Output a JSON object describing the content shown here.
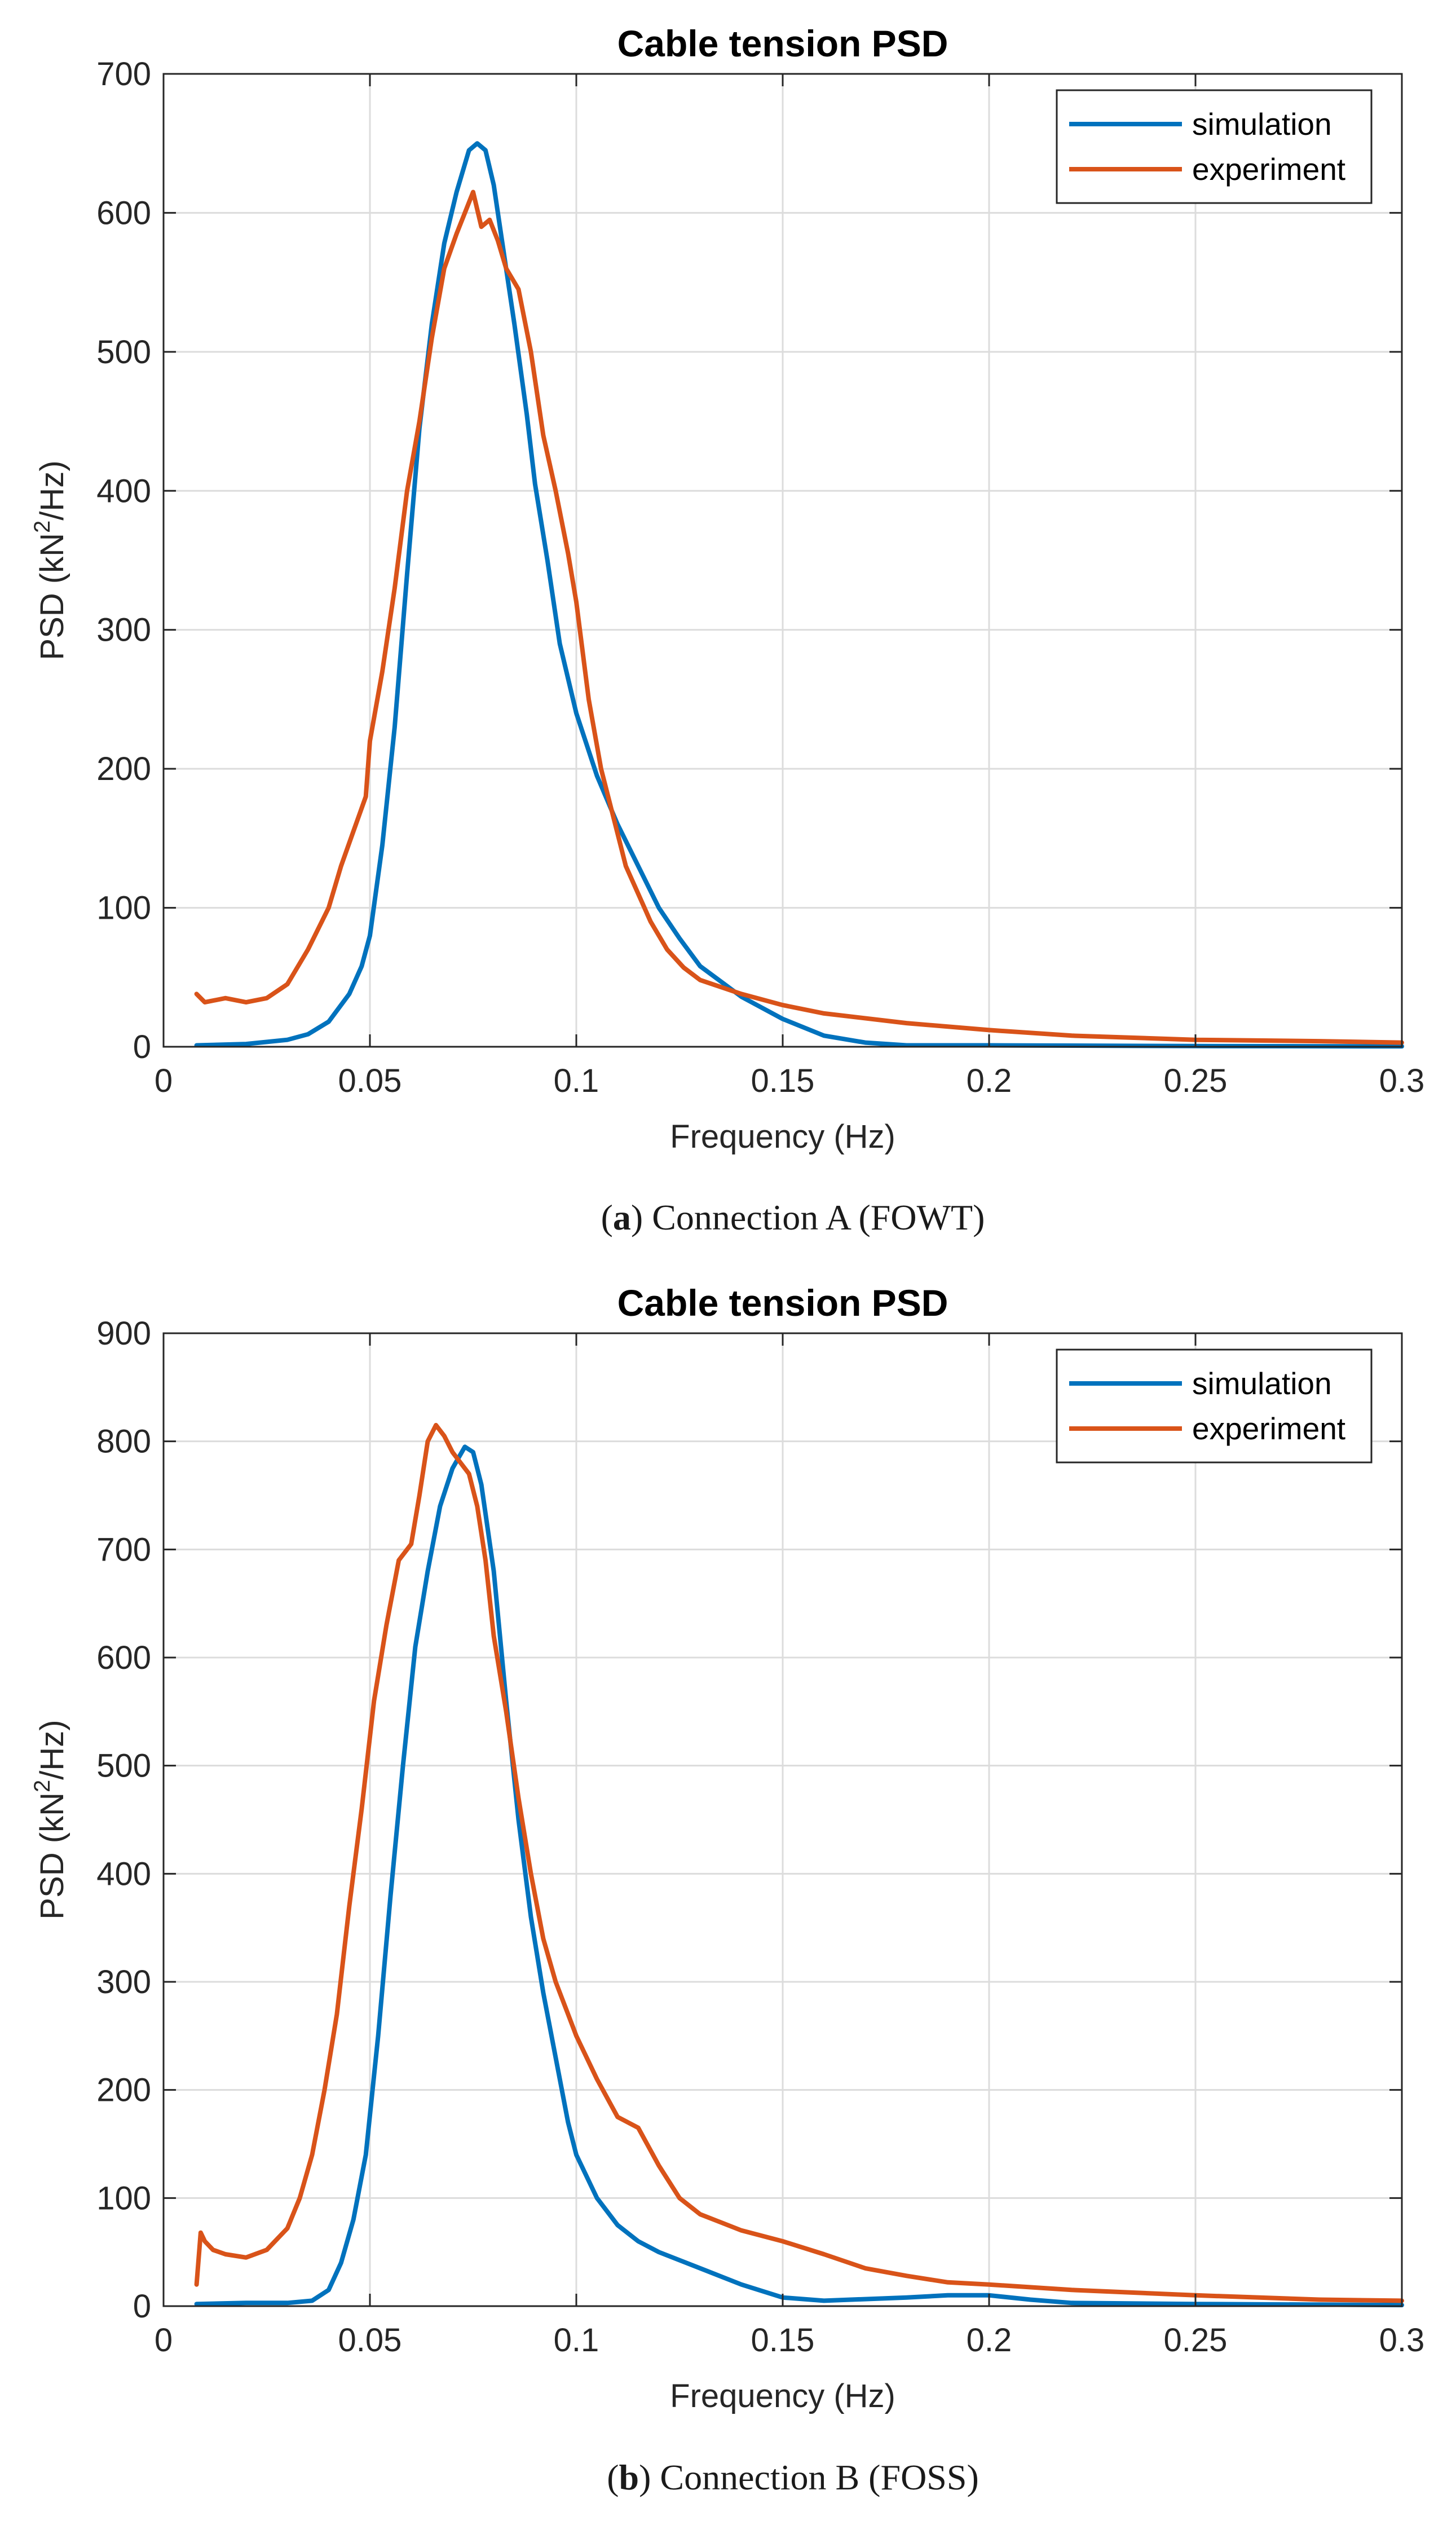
{
  "chart_data": [
    {
      "type": "line",
      "title": "Cable tension PSD",
      "xlabel": "Frequency (Hz)",
      "ylabel": {
        "prefix": "PSD (kN",
        "sup": "2",
        "suffix": "/Hz)"
      },
      "xlim": [
        0,
        0.3
      ],
      "ylim": [
        0,
        700
      ],
      "xticks": [
        0,
        0.05,
        0.1,
        0.15,
        0.2,
        0.25,
        0.3
      ],
      "xtick_labels": [
        "0",
        "0.05",
        "0.1",
        "0.15",
        "0.2",
        "0.25",
        "0.3"
      ],
      "yticks": [
        0,
        100,
        200,
        300,
        400,
        500,
        600,
        700
      ],
      "ytick_labels": [
        "0",
        "100",
        "200",
        "300",
        "400",
        "500",
        "600",
        "700"
      ],
      "grid": true,
      "legend_position": "top-right",
      "caption": {
        "letter": "a",
        "text": "Connection A (FOWT)"
      },
      "series": [
        {
          "name": "simulation",
          "color": "#0072BD",
          "x": [
            0.008,
            0.02,
            0.03,
            0.035,
            0.04,
            0.045,
            0.048,
            0.05,
            0.053,
            0.056,
            0.059,
            0.062,
            0.065,
            0.068,
            0.071,
            0.074,
            0.076,
            0.078,
            0.08,
            0.082,
            0.085,
            0.088,
            0.09,
            0.093,
            0.096,
            0.1,
            0.105,
            0.11,
            0.115,
            0.12,
            0.125,
            0.13,
            0.14,
            0.15,
            0.16,
            0.17,
            0.18,
            0.2,
            0.25,
            0.3
          ],
          "y": [
            1,
            2,
            5,
            9,
            18,
            38,
            58,
            80,
            145,
            230,
            340,
            445,
            520,
            578,
            615,
            645,
            650,
            645,
            620,
            580,
            520,
            455,
            405,
            350,
            290,
            240,
            195,
            160,
            130,
            100,
            78,
            58,
            36,
            20,
            8,
            3,
            1,
            1,
            0.5,
            0.3
          ]
        },
        {
          "name": "experiment",
          "color": "#D95319",
          "x": [
            0.008,
            0.01,
            0.015,
            0.02,
            0.025,
            0.03,
            0.035,
            0.04,
            0.043,
            0.046,
            0.049,
            0.05,
            0.053,
            0.056,
            0.059,
            0.062,
            0.065,
            0.068,
            0.071,
            0.073,
            0.075,
            0.077,
            0.079,
            0.081,
            0.083,
            0.086,
            0.089,
            0.092,
            0.095,
            0.098,
            0.1,
            0.103,
            0.106,
            0.109,
            0.112,
            0.115,
            0.118,
            0.122,
            0.126,
            0.13,
            0.14,
            0.15,
            0.16,
            0.18,
            0.2,
            0.22,
            0.25,
            0.28,
            0.3
          ],
          "y": [
            38,
            32,
            35,
            32,
            35,
            45,
            70,
            100,
            130,
            155,
            180,
            220,
            270,
            330,
            400,
            450,
            510,
            560,
            585,
            600,
            615,
            590,
            595,
            580,
            560,
            545,
            500,
            440,
            400,
            355,
            320,
            250,
            200,
            165,
            130,
            110,
            90,
            70,
            57,
            48,
            38,
            30,
            24,
            17,
            12,
            8,
            5,
            4,
            3
          ]
        }
      ]
    },
    {
      "type": "line",
      "title": "Cable tension PSD",
      "xlabel": "Frequency (Hz)",
      "ylabel": {
        "prefix": "PSD (kN",
        "sup": "2",
        "suffix": "/Hz)"
      },
      "xlim": [
        0,
        0.3
      ],
      "ylim": [
        0,
        900
      ],
      "xticks": [
        0,
        0.05,
        0.1,
        0.15,
        0.2,
        0.25,
        0.3
      ],
      "xtick_labels": [
        "0",
        "0.05",
        "0.1",
        "0.15",
        "0.2",
        "0.25",
        "0.3"
      ],
      "yticks": [
        0,
        100,
        200,
        300,
        400,
        500,
        600,
        700,
        800,
        900
      ],
      "ytick_labels": [
        "0",
        "100",
        "200",
        "300",
        "400",
        "500",
        "600",
        "700",
        "800",
        "900"
      ],
      "grid": true,
      "legend_position": "top-right",
      "caption": {
        "letter": "b",
        "text": "Connection B (FOSS)"
      },
      "series": [
        {
          "name": "simulation",
          "color": "#0072BD",
          "x": [
            0.008,
            0.02,
            0.03,
            0.036,
            0.04,
            0.043,
            0.046,
            0.049,
            0.052,
            0.055,
            0.058,
            0.061,
            0.064,
            0.067,
            0.07,
            0.073,
            0.075,
            0.077,
            0.08,
            0.083,
            0.086,
            0.089,
            0.092,
            0.095,
            0.098,
            0.1,
            0.105,
            0.11,
            0.115,
            0.12,
            0.13,
            0.14,
            0.15,
            0.16,
            0.18,
            0.19,
            0.2,
            0.21,
            0.22,
            0.25,
            0.3
          ],
          "y": [
            2,
            3,
            3,
            5,
            15,
            40,
            80,
            140,
            250,
            380,
            500,
            610,
            680,
            740,
            775,
            795,
            790,
            760,
            680,
            560,
            450,
            360,
            290,
            230,
            170,
            140,
            100,
            75,
            60,
            50,
            35,
            20,
            8,
            5,
            8,
            10,
            10,
            6,
            3,
            2,
            1
          ]
        },
        {
          "name": "experiment",
          "color": "#D95319",
          "x": [
            0.008,
            0.009,
            0.01,
            0.012,
            0.015,
            0.02,
            0.025,
            0.03,
            0.033,
            0.036,
            0.039,
            0.042,
            0.045,
            0.048,
            0.051,
            0.054,
            0.057,
            0.06,
            0.062,
            0.064,
            0.066,
            0.068,
            0.07,
            0.072,
            0.074,
            0.076,
            0.078,
            0.08,
            0.083,
            0.086,
            0.089,
            0.092,
            0.095,
            0.098,
            0.1,
            0.105,
            0.11,
            0.115,
            0.12,
            0.125,
            0.13,
            0.14,
            0.15,
            0.16,
            0.17,
            0.18,
            0.19,
            0.2,
            0.22,
            0.25,
            0.28,
            0.3
          ],
          "y": [
            20,
            68,
            60,
            52,
            48,
            45,
            52,
            72,
            100,
            140,
            200,
            270,
            370,
            460,
            560,
            630,
            690,
            705,
            750,
            800,
            815,
            805,
            790,
            780,
            770,
            740,
            690,
            620,
            550,
            470,
            400,
            340,
            300,
            270,
            250,
            210,
            175,
            165,
            130,
            100,
            85,
            70,
            60,
            48,
            35,
            28,
            22,
            20,
            15,
            10,
            6,
            5
          ]
        }
      ]
    }
  ]
}
